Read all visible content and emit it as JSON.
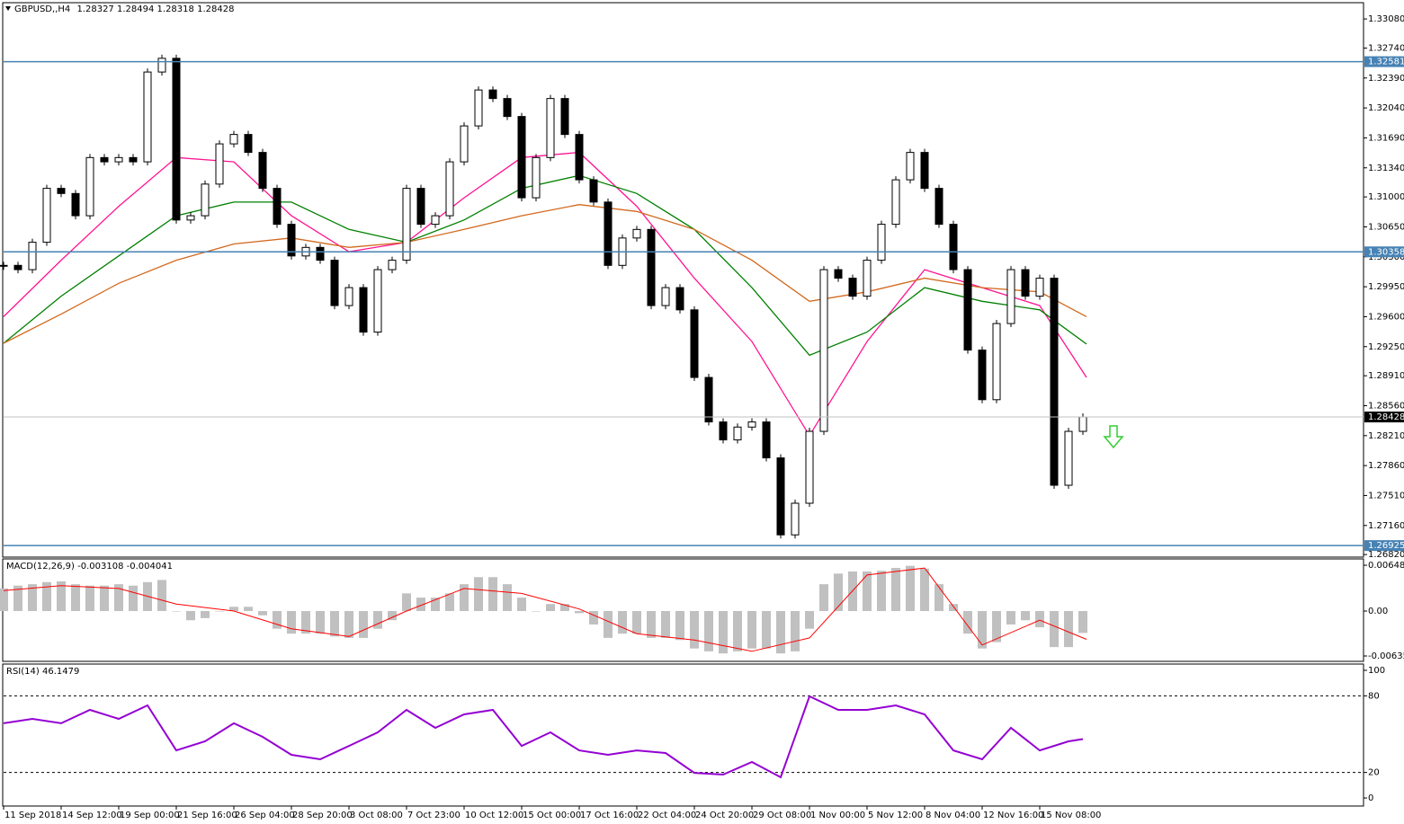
{
  "chart_data": [
    {
      "type": "candlestick",
      "symbol": "GBPUSD,,H4",
      "ohlc": [
        1.28327,
        1.28494,
        1.28318,
        1.28428
      ],
      "x": [
        0,
        4,
        8,
        12,
        16,
        20,
        24,
        28,
        32,
        36,
        40,
        44,
        48,
        52,
        56,
        60,
        64,
        68,
        72,
        76,
        80,
        84,
        88,
        92,
        96,
        100,
        104,
        108,
        112,
        116,
        120,
        124,
        128,
        132,
        136,
        140,
        144,
        148,
        152,
        156,
        160,
        164,
        168,
        172,
        176,
        180,
        184,
        188,
        192,
        196,
        200,
        204,
        208,
        212,
        216,
        220,
        224,
        228,
        232,
        236,
        240,
        244,
        248,
        252,
        256,
        260,
        264,
        268,
        272,
        276,
        280,
        284,
        288,
        292,
        296,
        300
      ],
      "close": [
        1.302,
        1.3015,
        1.3047,
        1.311,
        1.3104,
        1.3078,
        1.3146,
        1.3141,
        1.3146,
        1.3141,
        1.3246,
        1.3262,
        1.3073,
        1.3078,
        1.3115,
        1.3162,
        1.3173,
        1.3152,
        1.311,
        1.3068,
        1.3031,
        1.3041,
        1.3026,
        1.2973,
        1.2994,
        1.2942,
        1.3015,
        1.3026,
        1.311,
        1.3068,
        1.3078,
        1.3141,
        1.3183,
        1.3225,
        1.3215,
        1.3194,
        1.3099,
        1.3146,
        1.3215,
        1.3173,
        1.312,
        1.3094,
        1.302,
        1.3052,
        1.3062,
        1.2973,
        1.2994,
        1.2968,
        1.2889,
        1.2837,
        1.2816,
        1.2831,
        1.2837,
        1.2795,
        1.2705,
        1.2742,
        1.2826,
        1.3015,
        1.3005,
        1.2984,
        1.3026,
        1.3068,
        1.312,
        1.3152,
        1.311,
        1.3068,
        1.3015,
        1.2921,
        1.2863,
        1.2952,
        1.3015,
        1.2984,
        1.3005,
        1.2763,
        1.2826,
        1.28428
      ],
      "up_color": "#ffffff",
      "down_color": "#000000",
      "moving_averages": [
        {
          "color": "#ff1493",
          "x": [
            0,
            16,
            32,
            48,
            64,
            80,
            96,
            112,
            128,
            144,
            160,
            176,
            192,
            208,
            224,
            240,
            256,
            272,
            288,
            301
          ],
          "values": [
            1.296,
            1.3026,
            1.3089,
            1.3146,
            1.3141,
            1.3078,
            1.3036,
            1.3047,
            1.3099,
            1.3146,
            1.3152,
            1.3089,
            1.3005,
            1.2931,
            1.2821,
            1.2931,
            1.3015,
            1.2994,
            1.2973,
            1.2889
          ]
        },
        {
          "color": "#008000",
          "x": [
            0,
            16,
            32,
            48,
            64,
            80,
            96,
            112,
            128,
            144,
            160,
            176,
            192,
            208,
            224,
            240,
            256,
            272,
            288,
            301
          ],
          "values": [
            1.2929,
            1.2984,
            1.3031,
            1.3078,
            1.3094,
            1.3094,
            1.3062,
            1.3047,
            1.3073,
            1.311,
            1.3125,
            1.3104,
            1.3062,
            1.2994,
            1.2915,
            1.2942,
            1.2994,
            1.2978,
            1.2968,
            1.2928
          ]
        },
        {
          "color": "#d2691e",
          "x": [
            0,
            16,
            32,
            48,
            64,
            80,
            96,
            112,
            128,
            144,
            160,
            176,
            192,
            208,
            224,
            240,
            256,
            272,
            288,
            301
          ],
          "values": [
            1.2929,
            1.2963,
            1.2999,
            1.3026,
            1.3045,
            1.3052,
            1.3041,
            1.3047,
            1.3062,
            1.3078,
            1.3091,
            1.3083,
            1.3062,
            1.3026,
            1.2978,
            1.2989,
            1.3005,
            1.2994,
            1.2989,
            1.296
          ]
        }
      ],
      "levels": [
        {
          "value": 1.32581,
          "color": "#4682b4"
        },
        {
          "value": 1.30358,
          "color": "#4682b4"
        },
        {
          "value": 1.26925,
          "color": "#4682b4"
        }
      ],
      "ylim": [
        1.2679,
        1.3327
      ],
      "yticks": [
        {
          "value": 1.3308,
          "label": "1.33080"
        },
        {
          "value": 1.3274,
          "label": "1.32740"
        },
        {
          "value": 1.3239,
          "label": "1.32390"
        },
        {
          "value": 1.3204,
          "label": "1.32040"
        },
        {
          "value": 1.3169,
          "label": "1.31690"
        },
        {
          "value": 1.3134,
          "label": "1.31340"
        },
        {
          "value": 1.31,
          "label": "1.31000"
        },
        {
          "value": 1.3065,
          "label": "1.30650"
        },
        {
          "value": 1.303,
          "label": "1.30300"
        },
        {
          "value": 1.2995,
          "label": "1.29950"
        },
        {
          "value": 1.296,
          "label": "1.29600"
        },
        {
          "value": 1.2925,
          "label": "1.29250"
        },
        {
          "value": 1.2891,
          "label": "1.28910"
        },
        {
          "value": 1.2856,
          "label": "1.28560"
        },
        {
          "value": 1.2821,
          "label": "1.28210"
        },
        {
          "value": 1.2786,
          "label": "1.27860"
        },
        {
          "value": 1.2751,
          "label": "1.27510"
        },
        {
          "value": 1.2716,
          "label": "1.27160"
        },
        {
          "value": 1.2682,
          "label": "1.26820"
        }
      ],
      "xlim": [
        0,
        378
      ],
      "xticks": [
        {
          "value": 0,
          "label": "11 Sep 2018"
        },
        {
          "value": 16,
          "label": "14 Sep 12:00"
        },
        {
          "value": 32,
          "label": "19 Sep 00:00"
        },
        {
          "value": 48,
          "label": "21 Sep 16:00"
        },
        {
          "value": 64,
          "label": "26 Sep 04:00"
        },
        {
          "value": 80,
          "label": "28 Sep 20:00"
        },
        {
          "value": 96,
          "label": "3 Oct 08:00"
        },
        {
          "value": 112,
          "label": "7 Oct 23:00"
        },
        {
          "value": 128,
          "label": "10 Oct 12:00"
        },
        {
          "value": 144,
          "label": "15 Oct 00:00"
        },
        {
          "value": 160,
          "label": "17 Oct 16:00"
        },
        {
          "value": 176,
          "label": "22 Oct 04:00"
        },
        {
          "value": 192,
          "label": "24 Oct 20:00"
        },
        {
          "value": 208,
          "label": "29 Oct 08:00"
        },
        {
          "value": 224,
          "label": "1 Nov 00:00"
        },
        {
          "value": 240,
          "label": "5 Nov 12:00"
        },
        {
          "value": 256,
          "label": "8 Nov 04:00"
        },
        {
          "value": 272,
          "label": "12 Nov 16:00"
        },
        {
          "value": 288,
          "label": "15 Nov 08:00"
        }
      ]
    },
    {
      "type": "bar",
      "title": "MACD(12,26,9)",
      "indicator_values": [
        -0.003108,
        -0.004041
      ],
      "x": [
        0,
        4,
        8,
        12,
        16,
        20,
        24,
        28,
        32,
        36,
        40,
        44,
        48,
        52,
        56,
        60,
        64,
        68,
        72,
        76,
        80,
        84,
        88,
        92,
        96,
        100,
        104,
        108,
        112,
        116,
        120,
        124,
        128,
        132,
        136,
        140,
        144,
        148,
        152,
        156,
        160,
        164,
        168,
        172,
        176,
        180,
        184,
        188,
        192,
        196,
        200,
        204,
        208,
        212,
        216,
        220,
        224,
        228,
        232,
        236,
        240,
        244,
        248,
        252,
        256,
        260,
        264,
        268,
        272,
        276,
        280,
        284,
        288,
        292,
        296,
        300
      ],
      "values": [
        0.0032,
        0.0036,
        0.0038,
        0.0041,
        0.0042,
        0.0038,
        0.0036,
        0.0036,
        0.0038,
        0.0036,
        0.0041,
        0.0044,
        0,
        -0.0013,
        -0.001,
        0,
        0.0006,
        0.0006,
        -0.0006,
        -0.0025,
        -0.0032,
        -0.0032,
        -0.0032,
        -0.0036,
        -0.0038,
        -0.0038,
        -0.0025,
        -0.0013,
        0.0025,
        0.0019,
        0.0019,
        0.0025,
        0.0038,
        0.0048,
        0.0048,
        0.0038,
        0.0019,
        0,
        0.001,
        0.001,
        -0.0003,
        -0.0019,
        -0.0038,
        -0.0032,
        -0.0032,
        -0.0038,
        -0.0038,
        -0.0041,
        -0.0053,
        -0.0057,
        -0.006,
        -0.0057,
        -0.0053,
        -0.0053,
        -0.006,
        -0.0057,
        -0.0025,
        0.0038,
        0.0053,
        0.0056,
        0.0056,
        0.0057,
        0.0061,
        0.0064,
        0.006,
        0.0038,
        0.001,
        -0.0032,
        -0.0053,
        -0.0044,
        -0.0019,
        -0.0013,
        -0.0023,
        -0.0051,
        -0.0051,
        -0.0031
      ],
      "color": "#c0c0c0",
      "signal": {
        "color": "#ff0000",
        "x": [
          0,
          16,
          32,
          48,
          64,
          80,
          96,
          112,
          128,
          144,
          160,
          176,
          192,
          208,
          224,
          240,
          256,
          272,
          288,
          301
        ],
        "values": [
          0.0029,
          0.0036,
          0.0032,
          0.001,
          0,
          -0.0025,
          -0.0036,
          0,
          0.0032,
          0.0025,
          0.0003,
          -0.0032,
          -0.0041,
          -0.0057,
          -0.0038,
          0.0051,
          0.0061,
          -0.0048,
          -0.0013,
          -0.004
        ]
      },
      "ylim": [
        -0.00712,
        0.00738
      ],
      "yticks": [
        0.006487,
        {
          "value": 0,
          "label": "0.00"
        },
        -0.006359
      ]
    },
    {
      "type": "line",
      "title": "RSI(14)",
      "current": 46.1479,
      "x": [
        0,
        8,
        16,
        24,
        32,
        40,
        48,
        56,
        64,
        72,
        80,
        88,
        96,
        104,
        112,
        120,
        128,
        136,
        144,
        152,
        160,
        168,
        176,
        184,
        192,
        200,
        208,
        216,
        224,
        232,
        240,
        248,
        256,
        264,
        272,
        280,
        288,
        296,
        300
      ],
      "values": [
        58.5,
        62,
        58.5,
        69,
        62,
        72.5,
        37.3,
        44.4,
        58.5,
        47.9,
        33.8,
        30.3,
        40.8,
        51.4,
        69,
        54.9,
        65.5,
        69,
        40.8,
        51.4,
        37.3,
        33.8,
        37.3,
        35.2,
        19.7,
        18.3,
        28.2,
        16.2,
        79.6,
        69,
        69,
        72.5,
        65.5,
        37.3,
        30.3,
        54.9,
        37.3,
        44.4,
        46.1479
      ],
      "color": "#9400d3",
      "levels": [
        80,
        20
      ],
      "ylim": [
        -6.3,
        104.9
      ],
      "yticks": [
        100,
        80,
        20,
        0
      ]
    }
  ]
}
